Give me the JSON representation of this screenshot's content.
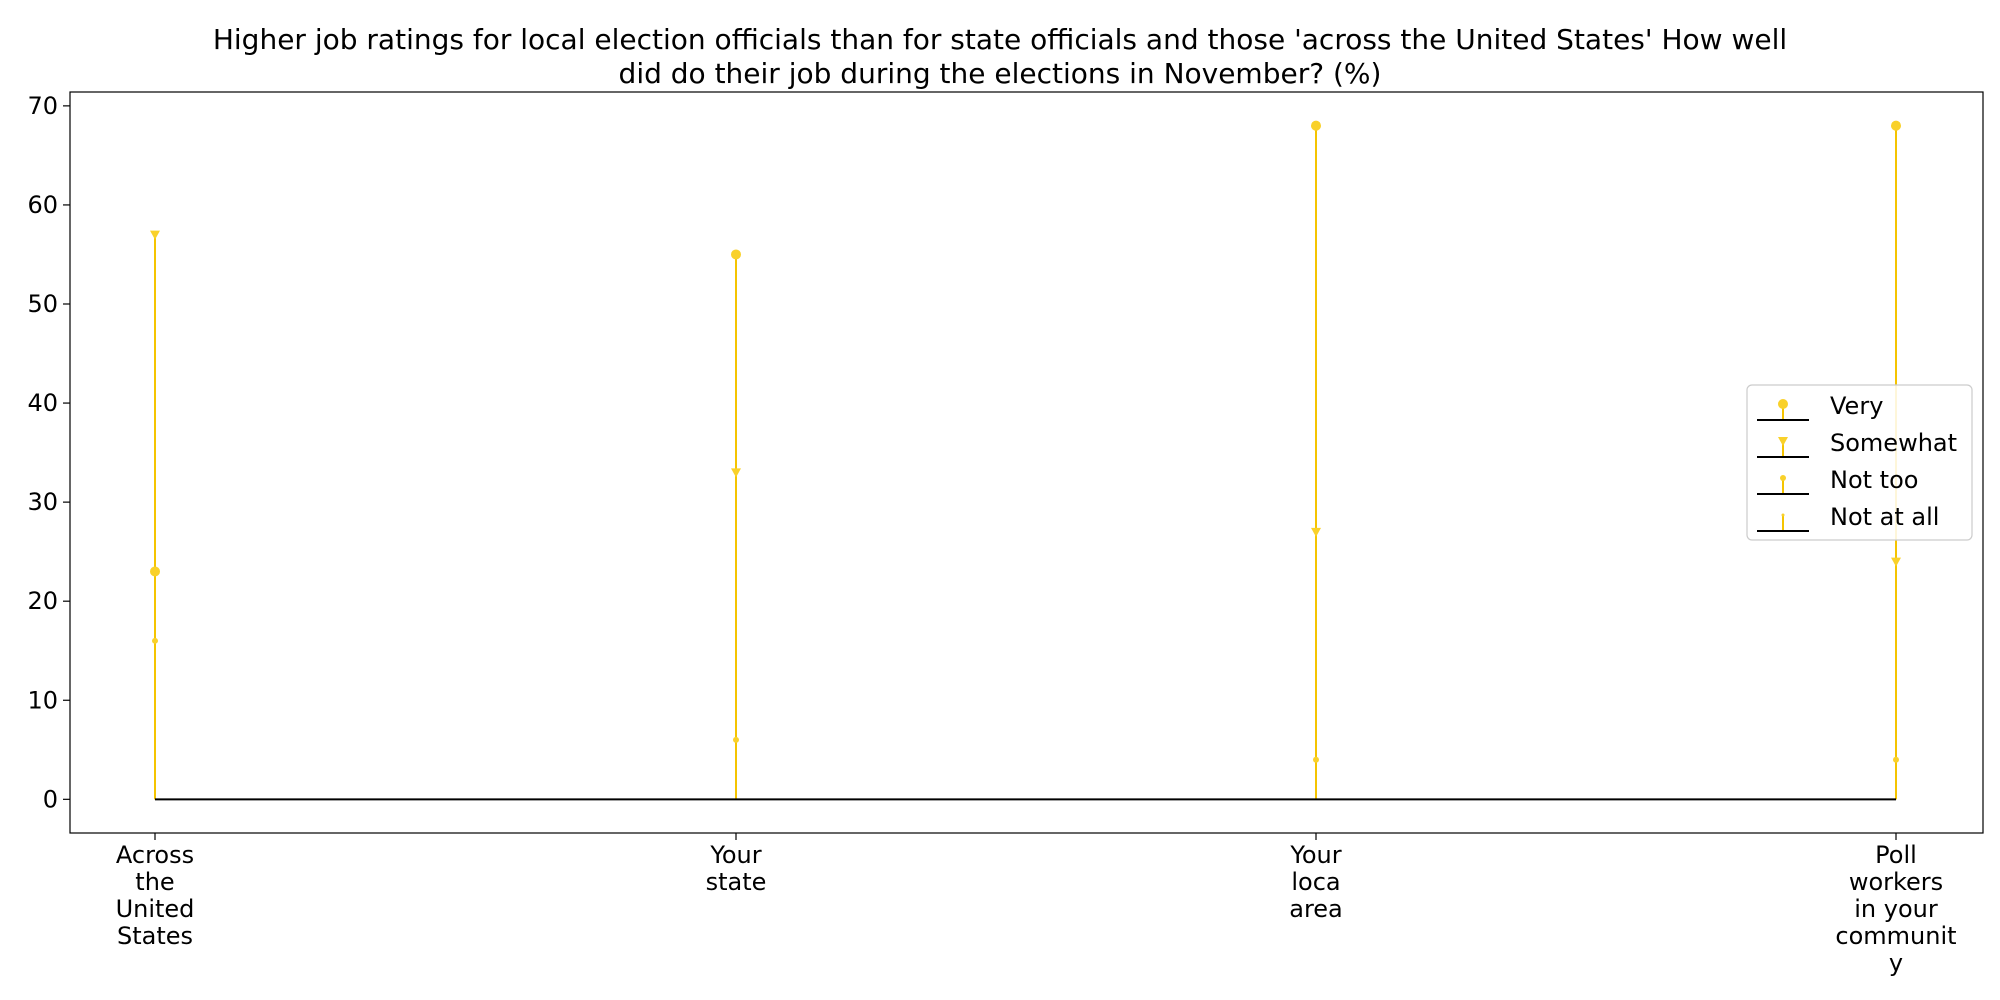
{
  "chart_data": {
    "type": "lollipop",
    "title": "Higher job ratings for local election officials than for state officials and those 'across the United States' How well did do their job during the elections in November? (%)",
    "title_lines": [
      "Higher job ratings for local election officials than for state officials and those 'across the United States' How well",
      "did do their job during the elections in November? (%)"
    ],
    "xlabel": "",
    "ylabel": "",
    "categories": [
      "Across the United States",
      "Your state",
      "Your loca area",
      "Poll workers in your communit y"
    ],
    "category_lines": [
      [
        "Across",
        "the",
        "United",
        "States"
      ],
      [
        "Your",
        "state"
      ],
      [
        "Your",
        "loca",
        "area"
      ],
      [
        "Poll",
        "workers",
        "in your",
        "communit",
        "y"
      ]
    ],
    "series": [
      {
        "name": "Very",
        "values": [
          23,
          55,
          68,
          68
        ],
        "marker": "circle"
      },
      {
        "name": "Somewhat",
        "values": [
          57,
          33,
          27,
          24
        ],
        "marker": "triangle-down"
      },
      {
        "name": "Not too",
        "values": [
          16,
          6,
          4,
          4
        ],
        "marker": "small-circle"
      },
      {
        "name": "Not at all",
        "values": [
          null,
          null,
          null,
          null
        ],
        "marker": "tiny"
      }
    ],
    "ylim": [
      -3.4,
      71.4
    ],
    "yticks": [
      0,
      10,
      20,
      30,
      40,
      50,
      60,
      70
    ],
    "grid": false,
    "legend_position": "center-right",
    "colors": {
      "stem": "#F5C400",
      "marker": "#F9D12A",
      "baseline": "#000000",
      "axis": "#000000"
    }
  }
}
